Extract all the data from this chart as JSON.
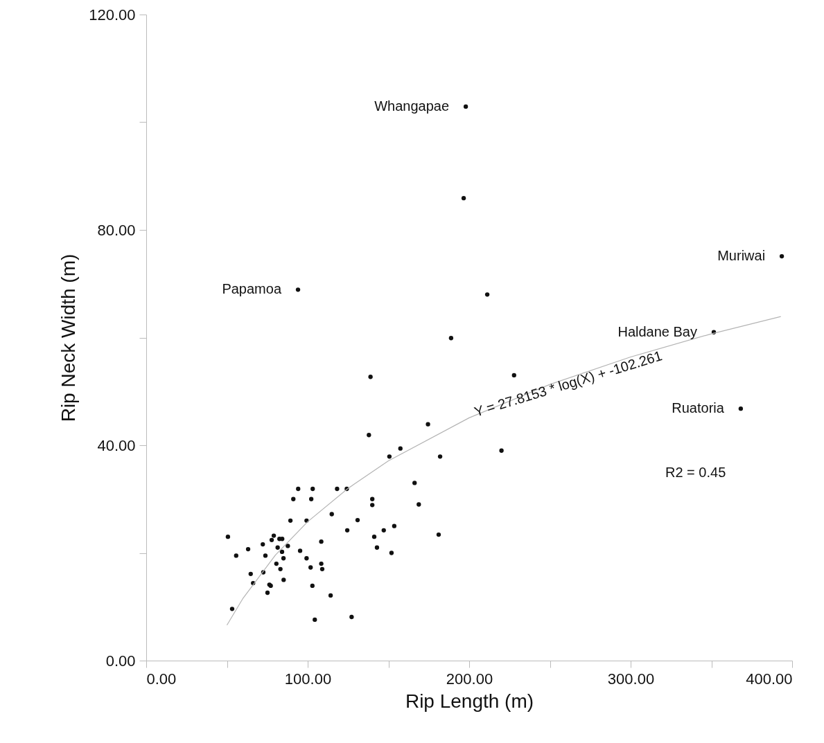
{
  "chart_data": {
    "type": "scatter",
    "xlabel": "Rip Length (m)",
    "ylabel": "Rip Neck Width (m)",
    "grid": false,
    "xlim": [
      0,
      400
    ],
    "ylim": [
      0,
      120
    ],
    "xticks": [
      {
        "value": 0,
        "label": "0.00"
      },
      {
        "value": 50,
        "label": null
      },
      {
        "value": 100,
        "label": "100.00"
      },
      {
        "value": 150,
        "label": null
      },
      {
        "value": 200,
        "label": "200.00"
      },
      {
        "value": 250,
        "label": null
      },
      {
        "value": 300,
        "label": "300.00"
      },
      {
        "value": 350,
        "label": null
      },
      {
        "value": 400,
        "label": "400.00"
      }
    ],
    "yticks": [
      {
        "value": 0,
        "label": "0.00"
      },
      {
        "value": 20,
        "label": null
      },
      {
        "value": 40,
        "label": "40.00"
      },
      {
        "value": 60,
        "label": null
      },
      {
        "value": 80,
        "label": "80.00"
      },
      {
        "value": 100,
        "label": null
      },
      {
        "value": 120,
        "label": "120.00"
      }
    ],
    "series": [
      {
        "marker": "circle",
        "color": "#111111",
        "x": [
          197.9,
          196.6,
          393.6,
          94.0,
          211.2,
          351.5,
          188.8,
          227.8,
          138.9,
          368.2,
          174.5,
          137.9,
          157.4,
          220.0,
          150.6,
          182.0,
          166.2,
          94.1,
          103.1,
          118.2,
          124.2,
          91.1,
          102.2,
          140.0,
          140.0,
          168.8,
          114.9,
          89.3,
          99.3,
          130.9,
          153.6,
          147.1,
          124.5,
          50.6,
          141.2,
          181.1,
          79.0,
          77.7,
          82.5,
          84.2,
          108.4,
          142.9,
          63.1,
          72.2,
          87.7,
          81.4,
          95.3,
          151.9,
          55.7,
          73.8,
          84.1,
          85.0,
          99.3,
          80.6,
          83.1,
          101.8,
          109.0,
          64.7,
          72.5,
          85.1,
          66.2,
          76.3,
          77.1,
          75.1,
          102.9,
          114.2,
          53.2,
          104.4,
          127.2,
          108.4
        ],
        "values": [
          102.9,
          85.9,
          75.1,
          68.9,
          68.0,
          61.0,
          59.9,
          53.0,
          52.7,
          46.8,
          43.9,
          41.9,
          39.4,
          39.0,
          37.9,
          37.9,
          33.0,
          31.9,
          31.9,
          31.9,
          31.9,
          30.0,
          30.0,
          30.0,
          28.9,
          29.0,
          27.2,
          26.0,
          26.0,
          26.1,
          25.0,
          24.2,
          24.2,
          23.0,
          23.0,
          23.4,
          23.2,
          22.4,
          22.6,
          22.6,
          22.1,
          21.0,
          20.7,
          21.6,
          21.3,
          21.0,
          20.4,
          20.0,
          19.5,
          19.5,
          20.2,
          19.0,
          19.0,
          18.0,
          17.0,
          17.3,
          17.0,
          16.1,
          16.4,
          15.0,
          14.4,
          14.1,
          13.9,
          12.6,
          13.9,
          12.1,
          9.6,
          7.6,
          8.1,
          18.0
        ]
      },
      {
        "type": "line",
        "marker": "none",
        "color": "#b4b4b4",
        "x": [
          50,
          60,
          80,
          100,
          125,
          150,
          200,
          250,
          300,
          350,
          393
        ],
        "values": [
          6.6,
          11.6,
          19.6,
          25.8,
          32.0,
          37.1,
          45.1,
          51.3,
          56.4,
          60.7,
          63.9
        ]
      }
    ],
    "annotations": [
      {
        "text": "Whangapae",
        "x": 197.9,
        "y": 102.9
      },
      {
        "text": "Muriwai",
        "x": 393.6,
        "y": 75.1
      },
      {
        "text": "Papamoa",
        "x": 94.0,
        "y": 68.9
      },
      {
        "text": "Haldane Bay",
        "x": 351.5,
        "y": 61.0
      },
      {
        "text": "Ruatoria",
        "x": 368.2,
        "y": 46.8
      },
      "Y = 27.8153 * log(X) + -102.261",
      "R2 = 0.45"
    ]
  }
}
